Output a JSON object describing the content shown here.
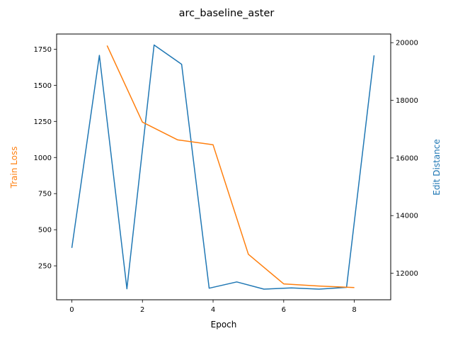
{
  "chart_data": {
    "type": "line",
    "title": "arc_baseline_aster",
    "xlabel": "Epoch",
    "ylabel_left": "Train Loss",
    "ylabel_right": "Edit Distance",
    "xlim": [
      -0.43,
      9.03
    ],
    "ylim_left": [
      15,
      1855
    ],
    "ylim_right": [
      11080,
      20300
    ],
    "x_ticks": [
      0,
      2,
      4,
      6,
      8
    ],
    "y_ticks_left": [
      250,
      500,
      750,
      1000,
      1250,
      1500,
      1750
    ],
    "y_ticks_right": [
      12000,
      14000,
      16000,
      18000,
      20000
    ],
    "grid": false,
    "colors": {
      "train_loss": "#ff7f0e",
      "edit_distance": "#1f77b4"
    },
    "series": [
      {
        "axis": "left",
        "x": [
          1,
          2,
          3,
          4,
          5,
          6,
          7,
          8
        ],
        "values": [
          1775,
          1245,
          1122,
          1088,
          330,
          125,
          110,
          100
        ]
      },
      {
        "axis": "right",
        "x": [
          0,
          0.78,
          1.56,
          2.33,
          3.11,
          3.89,
          4.67,
          5.44,
          6.22,
          7.0,
          7.78,
          8.56
        ],
        "values": [
          12880,
          19560,
          11460,
          19920,
          19250,
          11480,
          11700,
          11450,
          11490,
          11450,
          11510,
          19560
        ]
      }
    ]
  }
}
